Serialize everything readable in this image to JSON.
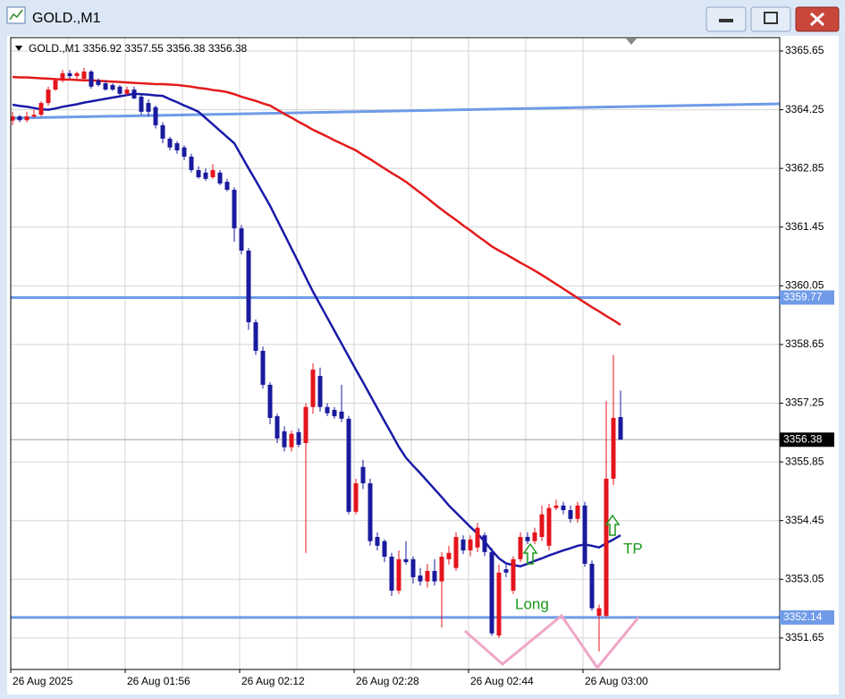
{
  "window": {
    "title": "GOLD.,M1"
  },
  "chart_data": {
    "type": "candlestick",
    "header": "GOLD.,M1  3356.92 3357.55 3356.38 3356.38",
    "categories": [
      "26 Aug 2025",
      null,
      null,
      null,
      null,
      null,
      null,
      null,
      null,
      null,
      null,
      null,
      null,
      null,
      null,
      null,
      "26 Aug 01:56",
      null,
      null,
      null,
      null,
      null,
      null,
      null,
      null,
      null,
      null,
      null,
      null,
      null,
      null,
      null,
      "26 Aug 02:12",
      null,
      null,
      null,
      null,
      null,
      null,
      null,
      null,
      null,
      null,
      null,
      null,
      null,
      null,
      null,
      "26 Aug 02:28",
      null,
      null,
      null,
      null,
      null,
      null,
      null,
      null,
      null,
      null,
      null,
      null,
      null,
      null,
      null,
      "26 Aug 02:44",
      null,
      null,
      null,
      null,
      null,
      null,
      null,
      null,
      null,
      null,
      null,
      null,
      null,
      null,
      null,
      "26 Aug 03:00",
      null,
      null,
      null,
      null,
      null
    ],
    "open": [
      3363.99,
      3364.09,
      3364.0,
      3364.09,
      3364.13,
      3364.41,
      3364.73,
      3364.95,
      3365.12,
      3365.05,
      3364.99,
      3365.16,
      3364.95,
      3364.88,
      3364.84,
      3364.8,
      3364.63,
      3364.73,
      3364.56,
      3364.41,
      3364.31,
      3363.88,
      3363.56,
      3363.45,
      3363.35,
      3363.13,
      3362.81,
      3362.75,
      3362.64,
      3362.75,
      3362.53,
      3362.34,
      3361.42,
      3360.89,
      3359.18,
      3358.5,
      3357.69,
      3356.94,
      3356.58,
      3356.2,
      3356.56,
      3356.3,
      3357.16,
      3357.9,
      3357.16,
      3357.09,
      3357.05,
      3356.88,
      3354.66,
      3355.73,
      3355.34,
      3354.06,
      3353.96,
      3353.59,
      3352.78,
      3353.53,
      3353.53,
      3353.14,
      3353.0,
      3353.25,
      3353.0,
      3353.53,
      3353.32,
      3354.0,
      3353.74,
      3353.81,
      3354.1,
      3353.7,
      3351.71,
      3353.29,
      3352.78,
      3353.53,
      3354.06,
      3353.96,
      3354.06,
      3353.85,
      3354.75,
      3354.81,
      3354.7,
      3354.49,
      3354.81,
      3353.42,
      3352.18,
      3352.18,
      3355.45,
      3356.92
    ],
    "high": [
      3364.2,
      3364.13,
      3364.2,
      3364.25,
      3364.45,
      3364.8,
      3365.0,
      3365.2,
      3365.2,
      3365.16,
      3365.25,
      3365.2,
      3365.0,
      3364.95,
      3364.88,
      3364.84,
      3364.8,
      3364.8,
      3364.63,
      3364.5,
      3364.35,
      3363.95,
      3363.6,
      3363.5,
      3363.4,
      3363.2,
      3362.9,
      3362.85,
      3362.95,
      3362.81,
      3362.6,
      3362.4,
      3361.5,
      3360.95,
      3359.25,
      3358.6,
      3357.75,
      3357.0,
      3356.7,
      3356.6,
      3356.65,
      3357.25,
      3358.2,
      3358.1,
      3357.25,
      3357.16,
      3357.69,
      3356.95,
      3355.45,
      3355.9,
      3355.45,
      3354.17,
      3354.0,
      3353.68,
      3353.74,
      3353.96,
      3353.6,
      3353.32,
      3353.42,
      3353.53,
      3353.7,
      3353.85,
      3354.17,
      3354.1,
      3354.1,
      3354.4,
      3354.17,
      3353.8,
      3353.4,
      3353.4,
      3353.6,
      3354.17,
      3354.17,
      3354.28,
      3354.81,
      3354.85,
      3354.95,
      3354.9,
      3354.81,
      3354.9,
      3354.9,
      3353.5,
      3352.45,
      3357.3,
      3358.4,
      3357.55
    ],
    "low": [
      3363.88,
      3363.95,
      3363.95,
      3364.05,
      3364.09,
      3364.35,
      3364.7,
      3364.9,
      3364.99,
      3364.99,
      3364.95,
      3364.75,
      3364.8,
      3364.7,
      3364.7,
      3364.6,
      3364.6,
      3364.5,
      3364.13,
      3364.09,
      3363.8,
      3363.45,
      3363.28,
      3363.2,
      3363.05,
      3362.75,
      3362.6,
      3362.55,
      3362.6,
      3362.45,
      3362.3,
      3361.1,
      3360.8,
      3359.0,
      3358.4,
      3357.6,
      3356.75,
      3356.3,
      3356.1,
      3356.1,
      3356.2,
      3353.68,
      3357.0,
      3357.05,
      3356.94,
      3356.88,
      3356.8,
      3354.6,
      3354.6,
      3355.2,
      3353.85,
      3353.74,
      3353.46,
      3352.65,
      3352.7,
      3353.4,
      3352.95,
      3352.9,
      3352.85,
      3352.9,
      3351.9,
      3353.4,
      3353.25,
      3353.65,
      3353.6,
      3353.7,
      3353.6,
      3351.7,
      3351.65,
      3353.1,
      3352.7,
      3353.46,
      3353.89,
      3353.89,
      3353.96,
      3353.74,
      3354.7,
      3354.6,
      3354.4,
      3354.4,
      3353.35,
      3352.3,
      3351.33,
      3352.14,
      3355.3,
      3356.38
    ],
    "close": [
      3364.09,
      3364.0,
      3364.09,
      3364.13,
      3364.41,
      3364.73,
      3364.95,
      3365.12,
      3365.05,
      3365.12,
      3365.16,
      3364.8,
      3364.84,
      3364.73,
      3364.73,
      3364.63,
      3364.73,
      3364.52,
      3364.2,
      3364.2,
      3363.88,
      3363.56,
      3363.35,
      3363.28,
      3363.13,
      3362.81,
      3362.64,
      3362.6,
      3362.81,
      3362.49,
      3362.34,
      3361.42,
      3360.89,
      3359.18,
      3358.5,
      3357.69,
      3356.9,
      3356.41,
      3356.2,
      3356.52,
      3356.26,
      3357.16,
      3358.05,
      3357.16,
      3357.01,
      3356.94,
      3356.88,
      3354.66,
      3355.34,
      3355.34,
      3353.96,
      3353.85,
      3353.59,
      3352.78,
      3353.53,
      3353.46,
      3353.1,
      3353.0,
      3353.25,
      3353.0,
      3353.59,
      3353.68,
      3354.06,
      3353.74,
      3354.0,
      3354.28,
      3353.7,
      3351.76,
      3353.21,
      3353.21,
      3353.53,
      3354.06,
      3353.96,
      3354.17,
      3354.6,
      3354.75,
      3354.81,
      3354.7,
      3354.49,
      3354.81,
      3353.42,
      3352.36,
      3352.36,
      3355.45,
      3356.9,
      3356.38
    ],
    "up_color": "#e4141c",
    "down_color": "#1a1a9e",
    "lines": [
      {
        "color": "#e41a1a",
        "values": [
          3365.03,
          3365.02,
          3365.02,
          3365.01,
          3365.0,
          3364.99,
          3364.98,
          3364.97,
          3364.97,
          3364.96,
          3364.95,
          3364.95,
          3364.94,
          3364.93,
          3364.92,
          3364.91,
          3364.9,
          3364.89,
          3364.88,
          3364.87,
          3364.86,
          3364.86,
          3364.85,
          3364.84,
          3364.82,
          3364.8,
          3364.77,
          3364.75,
          3364.72,
          3364.7,
          3364.67,
          3364.62,
          3364.56,
          3364.51,
          3364.46,
          3364.4,
          3364.35,
          3364.25,
          3364.15,
          3364.06,
          3363.96,
          3363.87,
          3363.77,
          3363.69,
          3363.61,
          3363.52,
          3363.44,
          3363.36,
          3363.28,
          3363.17,
          3363.07,
          3362.96,
          3362.85,
          3362.74,
          3362.64,
          3362.53,
          3362.4,
          3362.27,
          3362.14,
          3362.0,
          3361.87,
          3361.74,
          3361.62,
          3361.49,
          3361.37,
          3361.24,
          3361.12,
          3360.99,
          3360.89,
          3360.8,
          3360.7,
          3360.6,
          3360.51,
          3360.41,
          3360.31,
          3360.2,
          3360.09,
          3359.98,
          3359.87,
          3359.76,
          3359.65,
          3359.54,
          3359.44,
          3359.33,
          3359.23,
          3359.12
        ]
      },
      {
        "color": "#1a1aa8",
        "values": [
          3364.37,
          3364.34,
          3364.32,
          3364.29,
          3364.26,
          3364.25,
          3364.28,
          3364.32,
          3364.35,
          3364.38,
          3364.42,
          3364.45,
          3364.48,
          3364.51,
          3364.54,
          3364.57,
          3364.6,
          3364.63,
          3364.62,
          3364.61,
          3364.59,
          3364.58,
          3364.5,
          3364.43,
          3364.35,
          3364.28,
          3364.2,
          3364.05,
          3363.9,
          3363.75,
          3363.6,
          3363.45,
          3363.15,
          3362.85,
          3362.56,
          3362.26,
          3361.96,
          3361.62,
          3361.28,
          3360.94,
          3360.6,
          3360.25,
          3359.91,
          3359.6,
          3359.29,
          3358.98,
          3358.67,
          3358.36,
          3358.05,
          3357.75,
          3357.44,
          3357.13,
          3356.82,
          3356.52,
          3356.21,
          3355.95,
          3355.76,
          3355.58,
          3355.39,
          3355.2,
          3355.01,
          3354.81,
          3354.64,
          3354.47,
          3354.3,
          3354.14,
          3353.95,
          3353.74,
          3353.55,
          3353.43,
          3353.39,
          3353.36,
          3353.42,
          3353.49,
          3353.55,
          3353.62,
          3353.68,
          3353.74,
          3353.79,
          3353.85,
          3353.88,
          3353.85,
          3353.81,
          3353.91,
          3354.0,
          3354.1
        ]
      }
    ],
    "levels": [
      {
        "value": 3359.77,
        "color": "#6f9be8"
      },
      {
        "value": 3352.14,
        "color": "#6f9be8"
      }
    ],
    "trendline": {
      "values": [
        3364.05,
        3364.39
      ],
      "color": "#6f9be8"
    },
    "current_price": 3356.38,
    "annotations": [
      {
        "text": "Long"
      },
      {
        "text": "TP"
      }
    ],
    "ylim": [
      3350.9,
      3365.97
    ],
    "yticks": [
      3365.65,
      3364.25,
      3362.85,
      3361.45,
      3360.05,
      3358.65,
      3357.25,
      3355.85,
      3354.45,
      3353.05,
      3351.65
    ],
    "grid": true
  }
}
